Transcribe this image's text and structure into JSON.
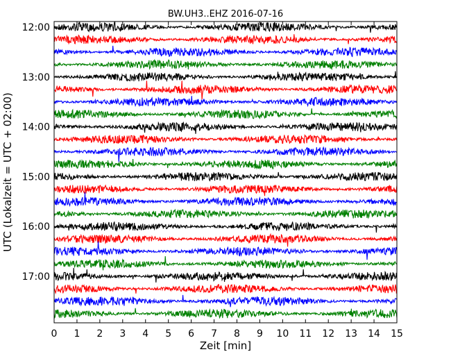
{
  "chart_data": {
    "type": "line",
    "title": "BW.UH3..EHZ 2016-07-16",
    "xlabel": "Zeit  [min]",
    "ylabel": "UTC (Lokalzeit = UTC + 02:00)",
    "xlim": [
      0,
      15
    ],
    "x_ticks": [
      "0",
      "1",
      "2",
      "3",
      "4",
      "5",
      "6",
      "7",
      "8",
      "9",
      "10",
      "11",
      "12",
      "13",
      "14",
      "15"
    ],
    "y_ticks": [
      "12:00",
      "13:00",
      "14:00",
      "15:00",
      "16:00",
      "17:00"
    ],
    "grid": false,
    "trace_interval_min": 15,
    "start_time": "12:00",
    "trace_count": 24,
    "colors": [
      "#000000",
      "#ff0000",
      "#0000ff",
      "#008000"
    ]
  }
}
